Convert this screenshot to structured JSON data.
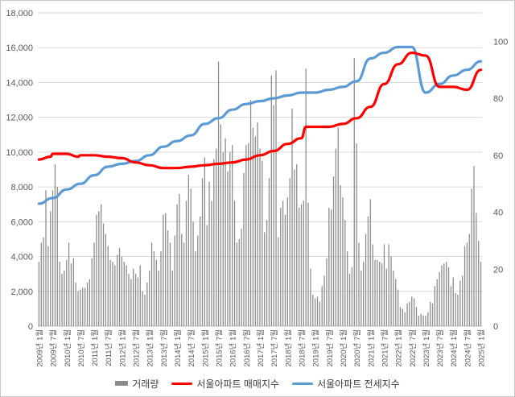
{
  "chart_data": {
    "type": "bar",
    "title": "",
    "xlabel": "",
    "ylabel": "",
    "y_left_ticks": [
      "0",
      "2,000",
      "4,000",
      "6,000",
      "8,000",
      "10,000",
      "12,000",
      "14,000",
      "16,000",
      "18,000"
    ],
    "y_right_ticks": [
      "0",
      "20",
      "40",
      "60",
      "80",
      "100"
    ],
    "ylim_left": [
      0,
      18000
    ],
    "ylim_right": [
      0,
      110
    ],
    "x_tick_labels": [
      "2009년 1월",
      "2009년 7월",
      "2010년 1월",
      "2010년 7월",
      "2011년 1월",
      "2011년 7월",
      "2012년 1월",
      "2012년 7월",
      "2013년 1월",
      "2013년 7월",
      "2014년 1월",
      "2014년 7월",
      "2015년 1월",
      "2015년 7월",
      "2016년 1월",
      "2016년 7월",
      "2017년 1월",
      "2017년 7월",
      "2018년 1월",
      "2018년 7월",
      "2019년 1월",
      "2019년 7월",
      "2020년 1월",
      "2020년 7월",
      "2021년 1월",
      "2021년 7월",
      "2022년 1월",
      "2022년 7월",
      "2023년 1월",
      "2023년 7월",
      "2024년 1월",
      "2024년 7월",
      "2025년 1월"
    ],
    "grid": true,
    "legend_position": "bottom",
    "colors": {
      "volume": "#8c8c8c",
      "sale_index": "#ff0000",
      "jeonse_index": "#5b9bd5"
    },
    "series": [
      {
        "name": "거래량",
        "axis": "left",
        "type": "bar",
        "values": [
          3700,
          4800,
          5100,
          7800,
          4600,
          6600,
          7800,
          9300,
          8000,
          3700,
          3000,
          3200,
          3800,
          4800,
          3600,
          3900,
          2500,
          2000,
          2100,
          2200,
          2200,
          2500,
          2700,
          3900,
          4800,
          6400,
          6600,
          7000,
          5900,
          5300,
          4600,
          3800,
          3700,
          3500,
          4100,
          4500,
          4000,
          3700,
          3500,
          3000,
          2700,
          3300,
          3000,
          2800,
          3500,
          2000,
          1800,
          2500,
          3200,
          4800,
          4300,
          3800,
          3200,
          4300,
          6400,
          6500,
          5500,
          4800,
          3200,
          5200,
          7000,
          7600,
          5300,
          4800,
          7200,
          8700,
          7900,
          6000,
          4300,
          5200,
          6300,
          8500,
          9700,
          5800,
          8300,
          7200,
          9600,
          10200,
          15200,
          11600,
          10000,
          10800,
          8900,
          10000,
          10400,
          7200,
          4800,
          5000,
          5600,
          8800,
          10400,
          10500,
          13000,
          11400,
          10900,
          11700,
          10200,
          9500,
          5400,
          6100,
          8500,
          14400,
          12700,
          14700,
          5100,
          6800,
          7200,
          6400,
          7400,
          8500,
          12500,
          9000,
          9300,
          6800,
          7000,
          7200,
          14800,
          7100,
          3300,
          1800,
          1600,
          1700,
          1400,
          2300,
          2900,
          3900,
          6800,
          6700,
          8600,
          10200,
          11400,
          8100,
          7400,
          6100,
          4300,
          3000,
          3400,
          15400,
          10500,
          4800,
          3200,
          3700,
          5300,
          6300,
          7300,
          4700,
          3800,
          3800,
          3700,
          3600,
          4700,
          3300,
          4700,
          4000,
          3200,
          2700,
          2100,
          1100,
          1000,
          800,
          1300,
          1400,
          1700,
          1600,
          1100,
          600,
          700,
          600,
          600,
          800,
          1400,
          1300,
          2300,
          2700,
          3100,
          3500,
          3600,
          3700,
          3400,
          2300,
          2800,
          1900,
          1800,
          2600,
          2900,
          4600,
          4800,
          5300,
          7900,
          9200,
          6500,
          4900,
          3700,
          3500,
          3200,
          3000,
          2900
        ]
      },
      {
        "name": "서울아파트 매매지수",
        "axis": "right",
        "type": "line",
        "x": [
          "2009-01",
          "2009-06",
          "2009-07",
          "2010-01",
          "2010-06",
          "2010-07",
          "2011-01",
          "2011-07",
          "2012-01",
          "2012-07",
          "2013-01",
          "2013-07",
          "2014-01",
          "2014-07",
          "2015-01",
          "2015-07",
          "2016-01",
          "2016-07",
          "2017-01",
          "2017-07",
          "2018-01",
          "2018-07",
          "2018-09",
          "2019-01",
          "2019-07",
          "2020-01",
          "2020-07",
          "2021-01",
          "2021-07",
          "2022-01",
          "2022-07",
          "2023-01",
          "2023-07",
          "2024-01",
          "2024-07",
          "2025-01"
        ],
        "values": [
          58.5,
          59.5,
          60.5,
          60.5,
          59.5,
          60,
          60,
          59.5,
          59,
          57.5,
          56.5,
          55.5,
          55.5,
          56,
          56.5,
          57,
          57.5,
          58.5,
          60,
          61.5,
          64,
          66,
          70,
          70,
          70,
          71,
          73,
          77,
          85,
          92,
          96,
          95,
          84,
          84,
          83,
          90
        ]
      },
      {
        "name": "서울아파트 전세지수",
        "axis": "right",
        "type": "line",
        "x": [
          "2009-01",
          "2009-07",
          "2010-01",
          "2010-07",
          "2011-01",
          "2011-07",
          "2012-01",
          "2012-07",
          "2013-01",
          "2013-07",
          "2014-01",
          "2014-07",
          "2015-01",
          "2015-07",
          "2016-01",
          "2016-07",
          "2017-01",
          "2017-07",
          "2018-01",
          "2018-07",
          "2019-01",
          "2019-07",
          "2020-01",
          "2020-07",
          "2021-01",
          "2021-07",
          "2022-01",
          "2022-07",
          "2023-01",
          "2023-07",
          "2024-01",
          "2024-07",
          "2025-01"
        ],
        "values": [
          43,
          45,
          48,
          50,
          53,
          56,
          57,
          58,
          60,
          63,
          65,
          67,
          71,
          73,
          76,
          78,
          79,
          80,
          81,
          82,
          82,
          83,
          84,
          86,
          94,
          96,
          98,
          98,
          82,
          85,
          88,
          90,
          93
        ]
      }
    ]
  },
  "legend": {
    "volume": "거래량",
    "sale": "서울아파트 매매지수",
    "jeonse": "서울아파트 전세지수"
  }
}
